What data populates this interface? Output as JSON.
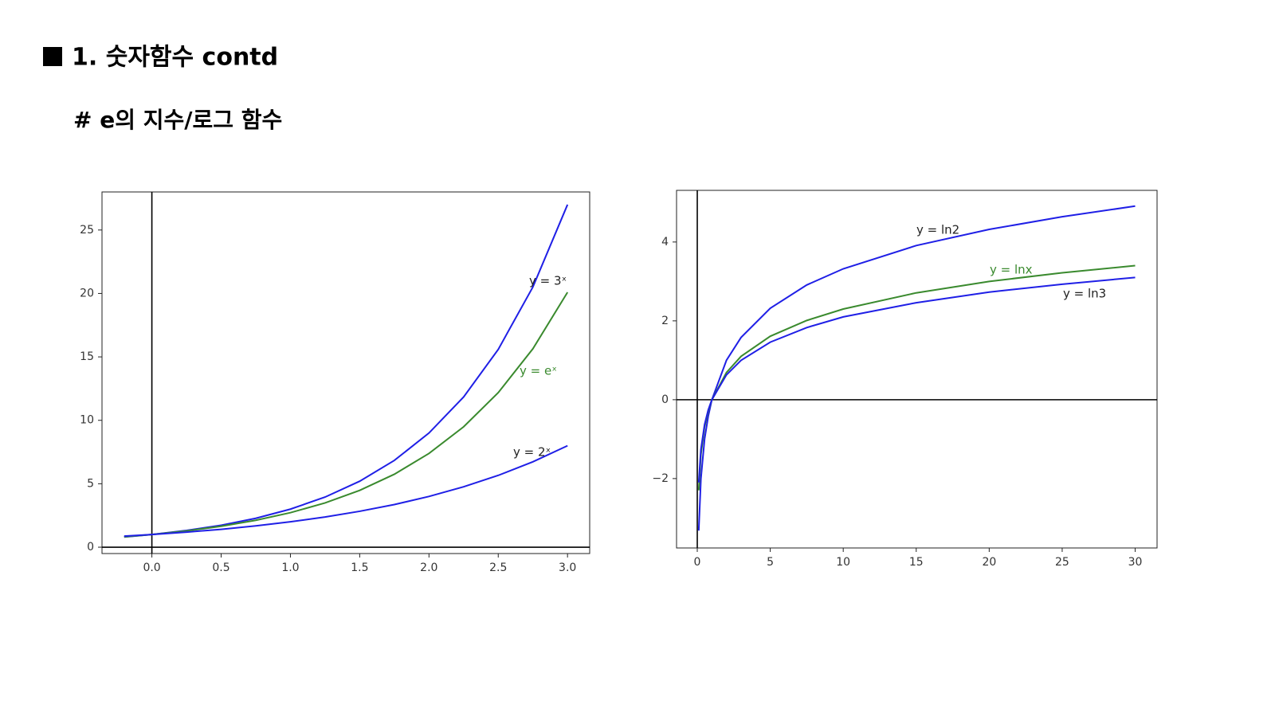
{
  "header": {
    "title": "1. 숫자함수 contd",
    "subtitle": "# e의 지수/로그 함수"
  },
  "chart_data": [
    {
      "type": "line",
      "zero_lines": true,
      "x": [
        -0.2,
        0,
        0.25,
        0.5,
        0.75,
        1,
        1.25,
        1.5,
        1.75,
        2,
        2.25,
        2.5,
        2.75,
        3
      ],
      "series": [
        {
          "name": "y = 3ˣ",
          "color": "#1f1fe6",
          "label_color": "#222222",
          "values": [
            0.8,
            1,
            1.32,
            1.73,
            2.28,
            3,
            3.95,
            5.2,
            6.84,
            9,
            11.84,
            15.59,
            20.51,
            27
          ]
        },
        {
          "name": "y = eˣ",
          "color": "#3a8a2e",
          "label_color": "#3a8a2e",
          "values": [
            0.82,
            1,
            1.28,
            1.65,
            2.12,
            2.72,
            3.49,
            4.48,
            5.75,
            7.39,
            9.49,
            12.18,
            15.64,
            20.09
          ]
        },
        {
          "name": "y = 2ˣ",
          "color": "#1f1fe6",
          "label_color": "#222222",
          "values": [
            0.87,
            1,
            1.19,
            1.41,
            1.68,
            2,
            2.38,
            2.83,
            3.36,
            4,
            4.76,
            5.66,
            6.73,
            8
          ]
        }
      ],
      "xlim": [
        -0.36,
        3.16
      ],
      "ylim": [
        -0.5,
        28
      ],
      "xticks": [
        {
          "value": 0,
          "label": "0.0"
        },
        {
          "value": 0.5,
          "label": "0.5"
        },
        {
          "value": 1,
          "label": "1.0"
        },
        {
          "value": 1.5,
          "label": "1.5"
        },
        {
          "value": 2,
          "label": "2.0"
        },
        {
          "value": 2.5,
          "label": "2.5"
        },
        {
          "value": 3,
          "label": "3.0"
        }
      ],
      "yticks": [
        0,
        5,
        10,
        15,
        20,
        25
      ]
    },
    {
      "type": "line",
      "zero_lines": true,
      "x": [
        0.1,
        0.25,
        0.5,
        0.75,
        1,
        2,
        3,
        5,
        7.5,
        10,
        15,
        20,
        25,
        30
      ],
      "series": [
        {
          "name": "y = ln2",
          "color": "#1f1fe6",
          "label_color": "#222222",
          "values": [
            -3.32,
            -2,
            -1,
            -0.42,
            0,
            1,
            1.58,
            2.32,
            2.91,
            3.32,
            3.91,
            4.32,
            4.64,
            4.91
          ]
        },
        {
          "name": "y = lnx",
          "color": "#3a8a2e",
          "label_color": "#3a8a2e",
          "values": [
            -2.3,
            -1.39,
            -0.69,
            -0.29,
            0,
            0.69,
            1.1,
            1.61,
            2.01,
            2.3,
            2.71,
            3,
            3.22,
            3.4
          ]
        },
        {
          "name": "y = ln3",
          "color": "#1f1fe6",
          "label_color": "#222222",
          "values": [
            -2.1,
            -1.26,
            -0.63,
            -0.26,
            0,
            0.63,
            1,
            1.46,
            1.83,
            2.1,
            2.46,
            2.73,
            2.93,
            3.1
          ]
        }
      ],
      "xlim": [
        -1.42,
        31.5
      ],
      "ylim": [
        -3.76,
        5.31
      ],
      "xticks": [
        0,
        5,
        10,
        15,
        20,
        25,
        30
      ],
      "yticks": [
        {
          "value": -2,
          "label": "−2"
        },
        0,
        2,
        4
      ]
    }
  ]
}
